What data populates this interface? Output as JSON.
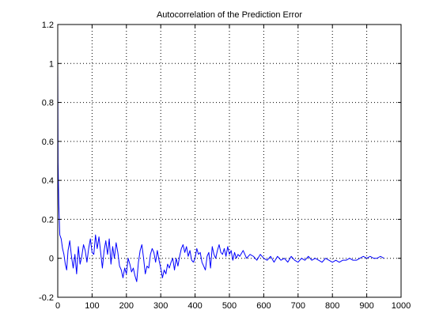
{
  "chart_data": {
    "type": "line",
    "title": "Autocorrelation of the Prediction Error",
    "xlabel": "",
    "ylabel": "",
    "xlim": [
      0,
      1000
    ],
    "ylim": [
      -0.2,
      1.2
    ],
    "x_ticks": [
      0,
      100,
      200,
      300,
      400,
      500,
      600,
      700,
      800,
      900,
      1000
    ],
    "x_tick_labels": [
      "0",
      "100",
      "200",
      "300",
      "400",
      "500",
      "600",
      "700",
      "800",
      "900",
      "1000"
    ],
    "y_ticks": [
      -0.2,
      0,
      0.2,
      0.4,
      0.6,
      0.8,
      1,
      1.2
    ],
    "y_tick_labels": [
      "-0.2",
      "0",
      "0.2",
      "0.4",
      "0.6",
      "0.8",
      "1",
      "1.2"
    ],
    "grid": true,
    "grid_style": "dotted",
    "series": [
      {
        "color": "#0000ff",
        "x": [
          0,
          1,
          3,
          6,
          10,
          14,
          18,
          22,
          26,
          30,
          35,
          40,
          45,
          50,
          55,
          60,
          65,
          70,
          75,
          80,
          85,
          90,
          95,
          100,
          105,
          110,
          115,
          120,
          125,
          130,
          135,
          140,
          145,
          150,
          155,
          160,
          165,
          170,
          175,
          180,
          185,
          190,
          195,
          200,
          205,
          210,
          215,
          220,
          225,
          230,
          235,
          240,
          245,
          250,
          255,
          260,
          265,
          270,
          275,
          280,
          285,
          290,
          295,
          300,
          305,
          310,
          315,
          320,
          325,
          330,
          335,
          340,
          345,
          350,
          355,
          360,
          365,
          370,
          375,
          380,
          385,
          390,
          395,
          400,
          405,
          410,
          415,
          420,
          425,
          430,
          435,
          440,
          445,
          450,
          455,
          460,
          465,
          470,
          475,
          480,
          485,
          490,
          495,
          500,
          505,
          510,
          515,
          520,
          525,
          530,
          540,
          550,
          560,
          570,
          580,
          590,
          600,
          610,
          620,
          630,
          640,
          650,
          660,
          670,
          680,
          690,
          700,
          710,
          720,
          730,
          740,
          750,
          760,
          770,
          780,
          790,
          800,
          810,
          820,
          830,
          840,
          850,
          860,
          870,
          880,
          890,
          900,
          910,
          920,
          930,
          940,
          950
        ],
        "y": [
          1.0,
          0.49,
          0.28,
          0.12,
          0.1,
          0.05,
          0.02,
          -0.03,
          -0.06,
          0.04,
          0.09,
          0.01,
          -0.05,
          0.02,
          -0.08,
          0.06,
          -0.03,
          0.01,
          0.07,
          0.04,
          -0.02,
          0.05,
          0.1,
          0.03,
          0.02,
          0.12,
          0.05,
          0.11,
          0.03,
          -0.05,
          0.04,
          0.09,
          0.02,
          0.1,
          -0.03,
          0.06,
          0.0,
          0.08,
          0.03,
          -0.04,
          -0.06,
          -0.1,
          -0.05,
          -0.08,
          0.0,
          -0.03,
          -0.07,
          -0.05,
          -0.09,
          -0.12,
          -0.02,
          0.04,
          0.07,
          0.0,
          -0.08,
          -0.04,
          -0.05,
          0.02,
          0.05,
          0.03,
          -0.02,
          0.04,
          -0.01,
          -0.05,
          -0.1,
          -0.06,
          -0.08,
          -0.03,
          -0.05,
          -0.02,
          0.0,
          -0.06,
          0.0,
          -0.04,
          0.01,
          0.05,
          0.07,
          0.03,
          0.06,
          0.01,
          0.04,
          -0.01,
          -0.02,
          0.0,
          0.05,
          0.02,
          0.03,
          -0.02,
          -0.04,
          -0.06,
          0.01,
          0.03,
          -0.05,
          0.06,
          0.02,
          0.0,
          0.04,
          0.07,
          0.03,
          0.02,
          0.05,
          0.01,
          0.06,
          0.02,
          0.04,
          -0.01,
          0.03,
          0.0,
          0.02,
          0.01,
          0.04,
          0.0,
          0.02,
          0.01,
          -0.01,
          0.02,
          0.0,
          -0.01,
          0.01,
          -0.02,
          0.01,
          -0.01,
          0.0,
          -0.02,
          0.01,
          -0.01,
          -0.02,
          0.0,
          -0.01,
          0.01,
          -0.01,
          0.0,
          -0.01,
          -0.02,
          0.0,
          -0.01,
          -0.02,
          -0.01,
          -0.02,
          -0.01,
          -0.01,
          0.0,
          -0.01,
          -0.01,
          0.0,
          0.01,
          0.0,
          0.01,
          0.0,
          0.0,
          0.01,
          0.0
        ]
      }
    ]
  }
}
